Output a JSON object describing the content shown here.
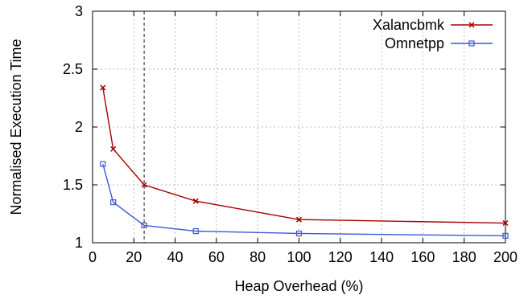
{
  "chart_data": {
    "type": "line",
    "xlabel": "Heap Overhead (%)",
    "ylabel": "Normalised Execution Time",
    "xlim": [
      0,
      200
    ],
    "ylim": [
      1,
      3
    ],
    "xticks": [
      0,
      20,
      40,
      60,
      80,
      100,
      120,
      140,
      160,
      180,
      200
    ],
    "yticks": [
      1,
      1.5,
      2,
      2.5,
      3
    ],
    "ytick_labels": [
      "1",
      "1.5",
      "2",
      "2.5",
      "3"
    ],
    "grid": true,
    "legend_position": "top-right",
    "reference_line_x": 25,
    "series": [
      {
        "name": "Xalancbmk",
        "color": "#a50000",
        "marker": "cross",
        "x": [
          5,
          10,
          25,
          50,
          100,
          200
        ],
        "y": [
          2.34,
          1.81,
          1.5,
          1.36,
          1.2,
          1.17
        ]
      },
      {
        "name": "Omnetpp",
        "color": "#3a58d6",
        "marker": "square",
        "x": [
          5,
          10,
          25,
          50,
          100,
          200
        ],
        "y": [
          1.68,
          1.35,
          1.15,
          1.1,
          1.08,
          1.06
        ]
      }
    ]
  }
}
